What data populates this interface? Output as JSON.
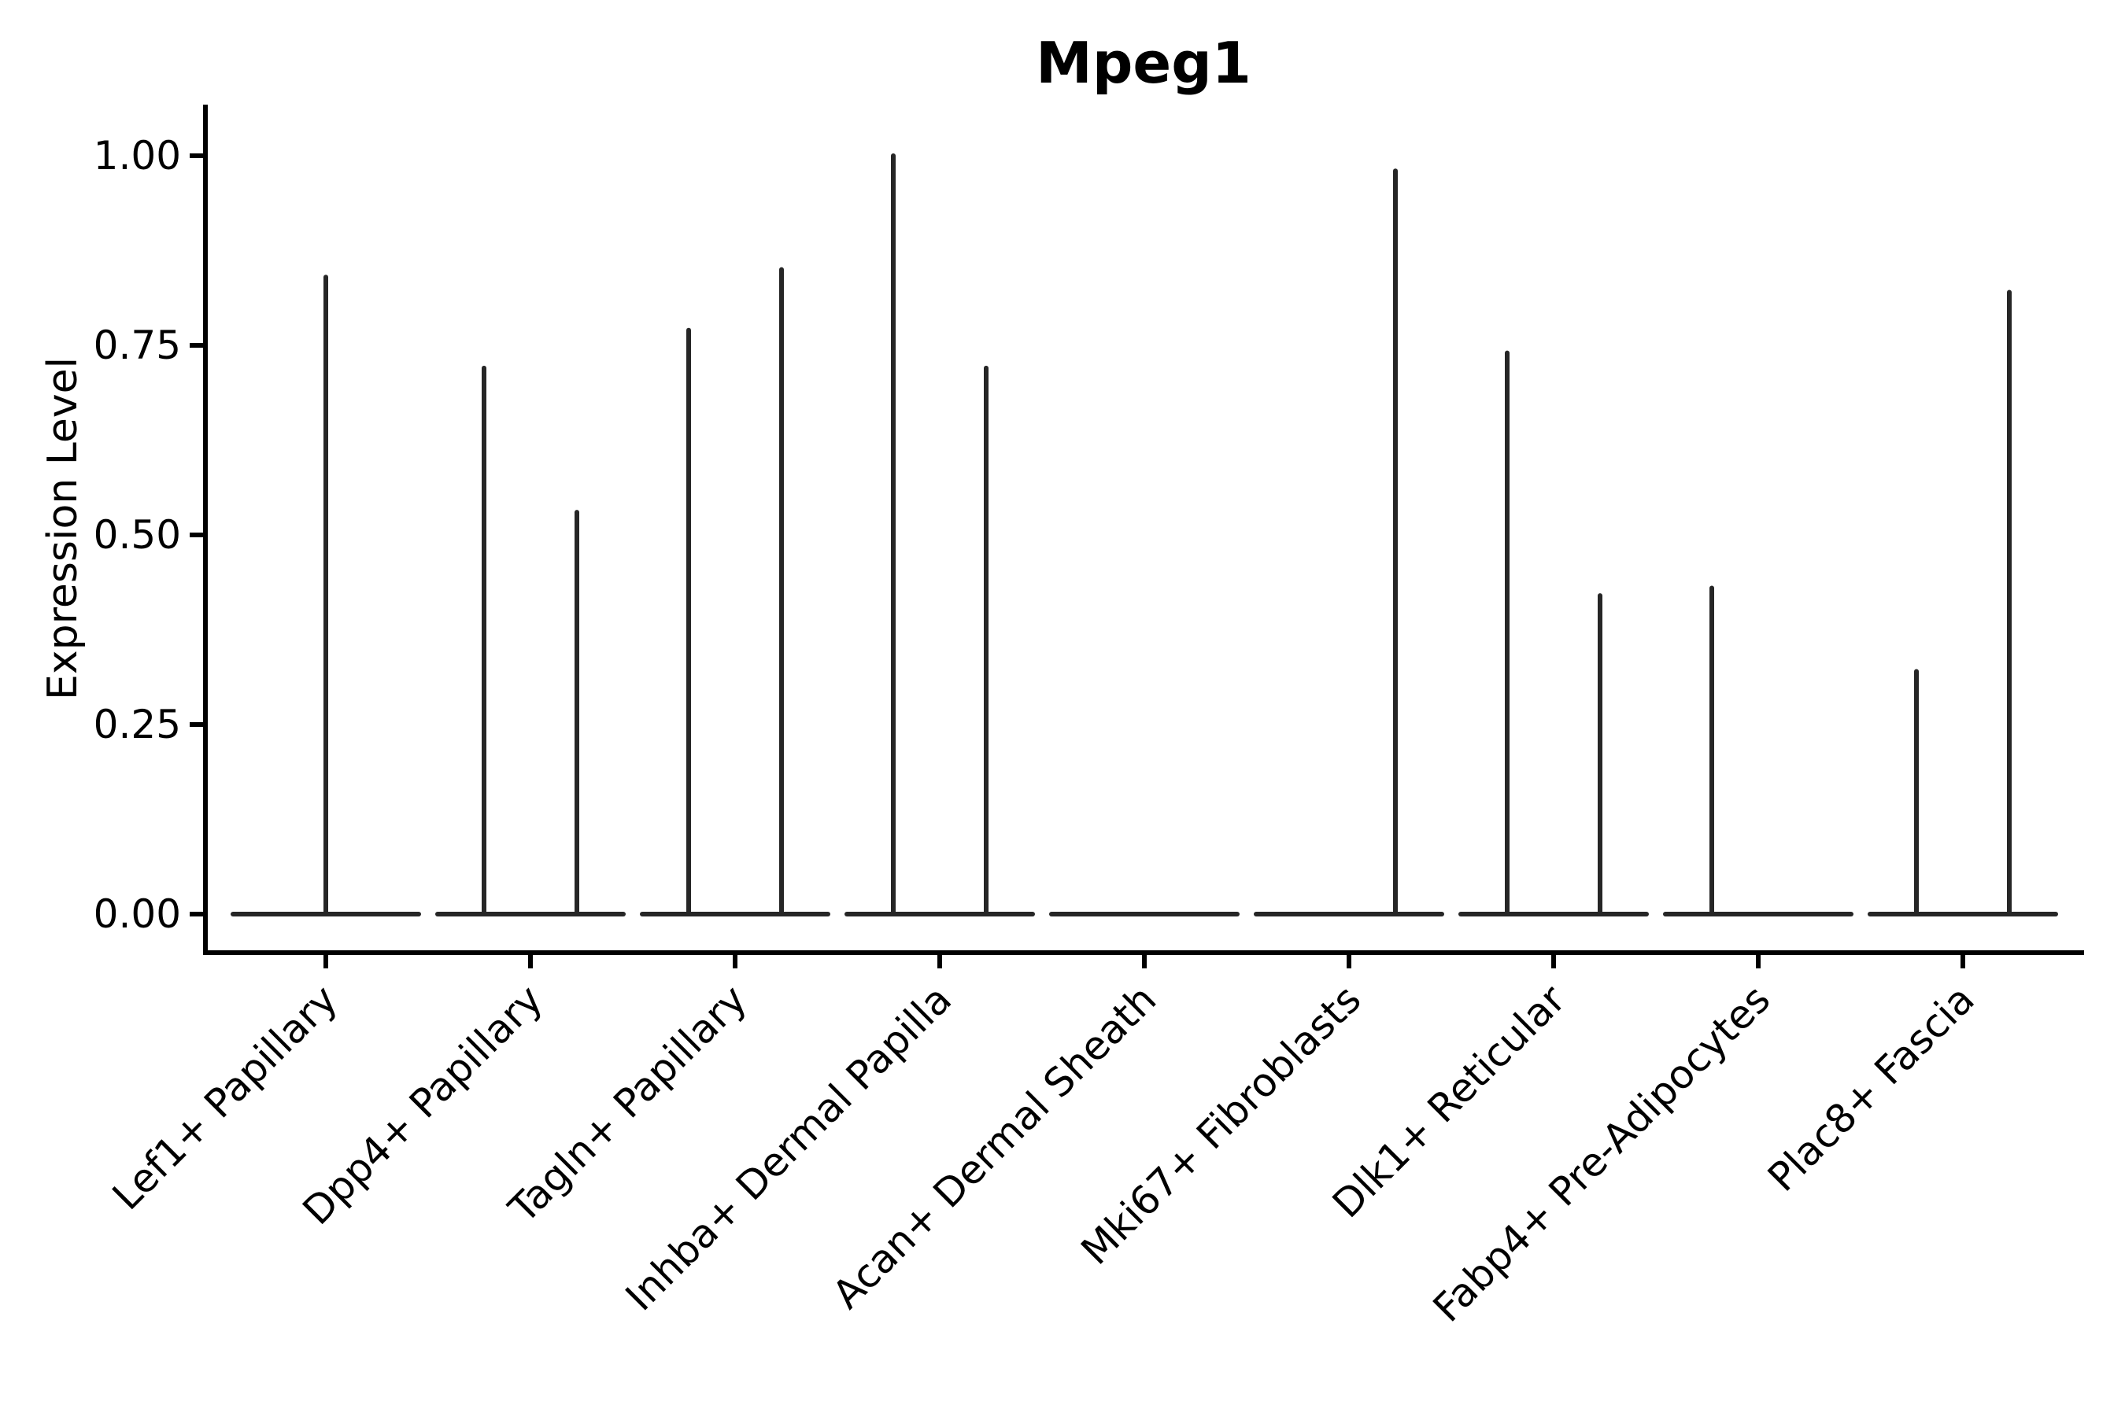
{
  "title": "Mpeg1",
  "style": {
    "background": "#ffffff",
    "axis_color": "#000000",
    "text_color": "#000000",
    "violin_color": "#262626"
  },
  "chart_data": {
    "type": "violin",
    "title": "Mpeg1",
    "xlabel": "",
    "ylabel": "Expression Level",
    "ylim": [
      -0.05,
      1.07
    ],
    "yticks": [
      0.0,
      0.25,
      0.5,
      0.75,
      1.0
    ],
    "ytick_labels": [
      "0.00",
      "0.25",
      "0.50",
      "0.75",
      "1.00"
    ],
    "grid": false,
    "legend": null,
    "baseline_value": 0.0,
    "categories": [
      "Lef1+ Papillary",
      "Dpp4+ Papillary",
      "Tagln+ Papillary",
      "Inhba+ Dermal Papilla",
      "Acan+ Dermal Sheath",
      "Mki67+ Fibroblasts",
      "Dlk1+ Reticular",
      "Fabp4+ Pre-Adipocytes",
      "Plac8+ Fascia"
    ],
    "violins": [
      {
        "category": "Lef1+ Papillary",
        "spikes": [
          {
            "position": "center",
            "value": 0.84
          }
        ]
      },
      {
        "category": "Dpp4+ Papillary",
        "spikes": [
          {
            "position": "left",
            "value": 0.72
          },
          {
            "position": "right",
            "value": 0.53
          }
        ]
      },
      {
        "category": "Tagln+ Papillary",
        "spikes": [
          {
            "position": "left",
            "value": 0.77
          },
          {
            "position": "right",
            "value": 0.85
          }
        ]
      },
      {
        "category": "Inhba+ Dermal Papilla",
        "spikes": [
          {
            "position": "left",
            "value": 1.0
          },
          {
            "position": "right",
            "value": 0.72
          }
        ]
      },
      {
        "category": "Acan+ Dermal Sheath",
        "spikes": []
      },
      {
        "category": "Mki67+ Fibroblasts",
        "spikes": [
          {
            "position": "right",
            "value": 0.98
          }
        ]
      },
      {
        "category": "Dlk1+ Reticular",
        "spikes": [
          {
            "position": "left",
            "value": 0.74
          },
          {
            "position": "right",
            "value": 0.42
          }
        ]
      },
      {
        "category": "Fabp4+ Pre-Adipocytes",
        "spikes": [
          {
            "position": "left",
            "value": 0.43
          }
        ]
      },
      {
        "category": "Plac8+ Fascia",
        "spikes": [
          {
            "position": "left",
            "value": 0.32
          },
          {
            "position": "right",
            "value": 0.82
          }
        ]
      }
    ]
  }
}
